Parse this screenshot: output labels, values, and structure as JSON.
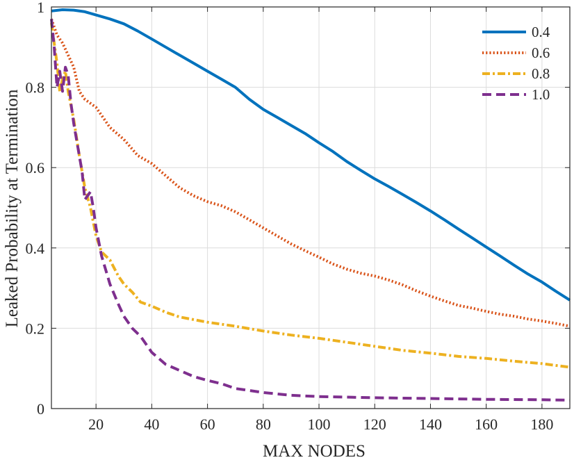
{
  "chart_data": {
    "type": "line",
    "title": "",
    "xlabel": "MAX  NODES",
    "ylabel": "Leaked Probability at Termination",
    "xlim": [
      4,
      190
    ],
    "ylim": [
      0,
      1
    ],
    "grid": true,
    "legend_position": "top-right",
    "x_ticks": [
      20,
      40,
      60,
      80,
      100,
      120,
      140,
      160,
      180
    ],
    "x_tick_labels": [
      "20",
      "40",
      "60",
      "80",
      "100",
      "120",
      "140",
      "160",
      "180"
    ],
    "y_ticks": [
      0,
      0.2,
      0.4,
      0.6,
      0.8,
      1
    ],
    "y_tick_labels": [
      "0",
      "0.2",
      "0.4",
      "0.6",
      "0.8",
      "1"
    ],
    "series": [
      {
        "name": "0.4",
        "color": "#0072BD",
        "style": "solid",
        "x": [
          4,
          8,
          12,
          16,
          20,
          25,
          30,
          35,
          40,
          45,
          50,
          55,
          60,
          65,
          70,
          75,
          80,
          85,
          90,
          95,
          100,
          105,
          110,
          115,
          120,
          125,
          130,
          135,
          140,
          145,
          150,
          155,
          160,
          165,
          170,
          175,
          180,
          185,
          190
        ],
        "y": [
          0.99,
          0.993,
          0.992,
          0.988,
          0.98,
          0.97,
          0.958,
          0.94,
          0.92,
          0.9,
          0.88,
          0.86,
          0.84,
          0.82,
          0.8,
          0.77,
          0.745,
          0.725,
          0.705,
          0.685,
          0.662,
          0.64,
          0.615,
          0.593,
          0.572,
          0.553,
          0.533,
          0.513,
          0.492,
          0.47,
          0.447,
          0.425,
          0.402,
          0.38,
          0.357,
          0.335,
          0.315,
          0.292,
          0.27
        ]
      },
      {
        "name": "0.6",
        "color": "#D95319",
        "style": "dotted",
        "x": [
          4,
          6,
          8,
          10,
          12,
          14,
          16,
          18,
          20,
          25,
          30,
          35,
          40,
          45,
          50,
          55,
          60,
          65,
          70,
          75,
          80,
          85,
          90,
          95,
          100,
          105,
          110,
          115,
          120,
          125,
          130,
          135,
          140,
          145,
          150,
          155,
          160,
          165,
          170,
          175,
          180,
          185,
          190
        ],
        "y": [
          0.97,
          0.93,
          0.91,
          0.88,
          0.85,
          0.79,
          0.77,
          0.76,
          0.75,
          0.7,
          0.67,
          0.63,
          0.61,
          0.58,
          0.55,
          0.53,
          0.515,
          0.505,
          0.49,
          0.47,
          0.45,
          0.43,
          0.41,
          0.393,
          0.377,
          0.36,
          0.347,
          0.337,
          0.33,
          0.32,
          0.308,
          0.293,
          0.28,
          0.268,
          0.257,
          0.25,
          0.242,
          0.235,
          0.23,
          0.223,
          0.218,
          0.212,
          0.205
        ]
      },
      {
        "name": "0.8",
        "color": "#EDB120",
        "style": "dashdot",
        "x": [
          4,
          6,
          7,
          8,
          9,
          10,
          12,
          14,
          16,
          18,
          20,
          22,
          25,
          28,
          30,
          33,
          36,
          40,
          45,
          50,
          60,
          70,
          80,
          90,
          100,
          110,
          120,
          130,
          140,
          150,
          160,
          170,
          180,
          190
        ],
        "y": [
          0.96,
          0.86,
          0.79,
          0.82,
          0.84,
          0.79,
          0.72,
          0.63,
          0.55,
          0.5,
          0.43,
          0.39,
          0.37,
          0.33,
          0.31,
          0.29,
          0.265,
          0.255,
          0.24,
          0.228,
          0.215,
          0.205,
          0.193,
          0.183,
          0.175,
          0.165,
          0.155,
          0.145,
          0.138,
          0.13,
          0.125,
          0.118,
          0.112,
          0.103
        ]
      },
      {
        "name": "1.0",
        "color": "#7E2F8E",
        "style": "dashed",
        "x": [
          4,
          5,
          6,
          7,
          8,
          9,
          10,
          11,
          12,
          13,
          14,
          15,
          16,
          17,
          18,
          19,
          20,
          22,
          25,
          28,
          30,
          33,
          36,
          40,
          45,
          50,
          55,
          60,
          65,
          70,
          80,
          90,
          100,
          120,
          140,
          160,
          180,
          190
        ],
        "y": [
          0.97,
          0.9,
          0.8,
          0.84,
          0.79,
          0.85,
          0.83,
          0.76,
          0.71,
          0.67,
          0.63,
          0.59,
          0.52,
          0.53,
          0.54,
          0.5,
          0.45,
          0.38,
          0.31,
          0.26,
          0.23,
          0.2,
          0.18,
          0.14,
          0.11,
          0.095,
          0.08,
          0.07,
          0.062,
          0.05,
          0.04,
          0.033,
          0.03,
          0.027,
          0.025,
          0.023,
          0.022,
          0.021
        ]
      }
    ]
  }
}
